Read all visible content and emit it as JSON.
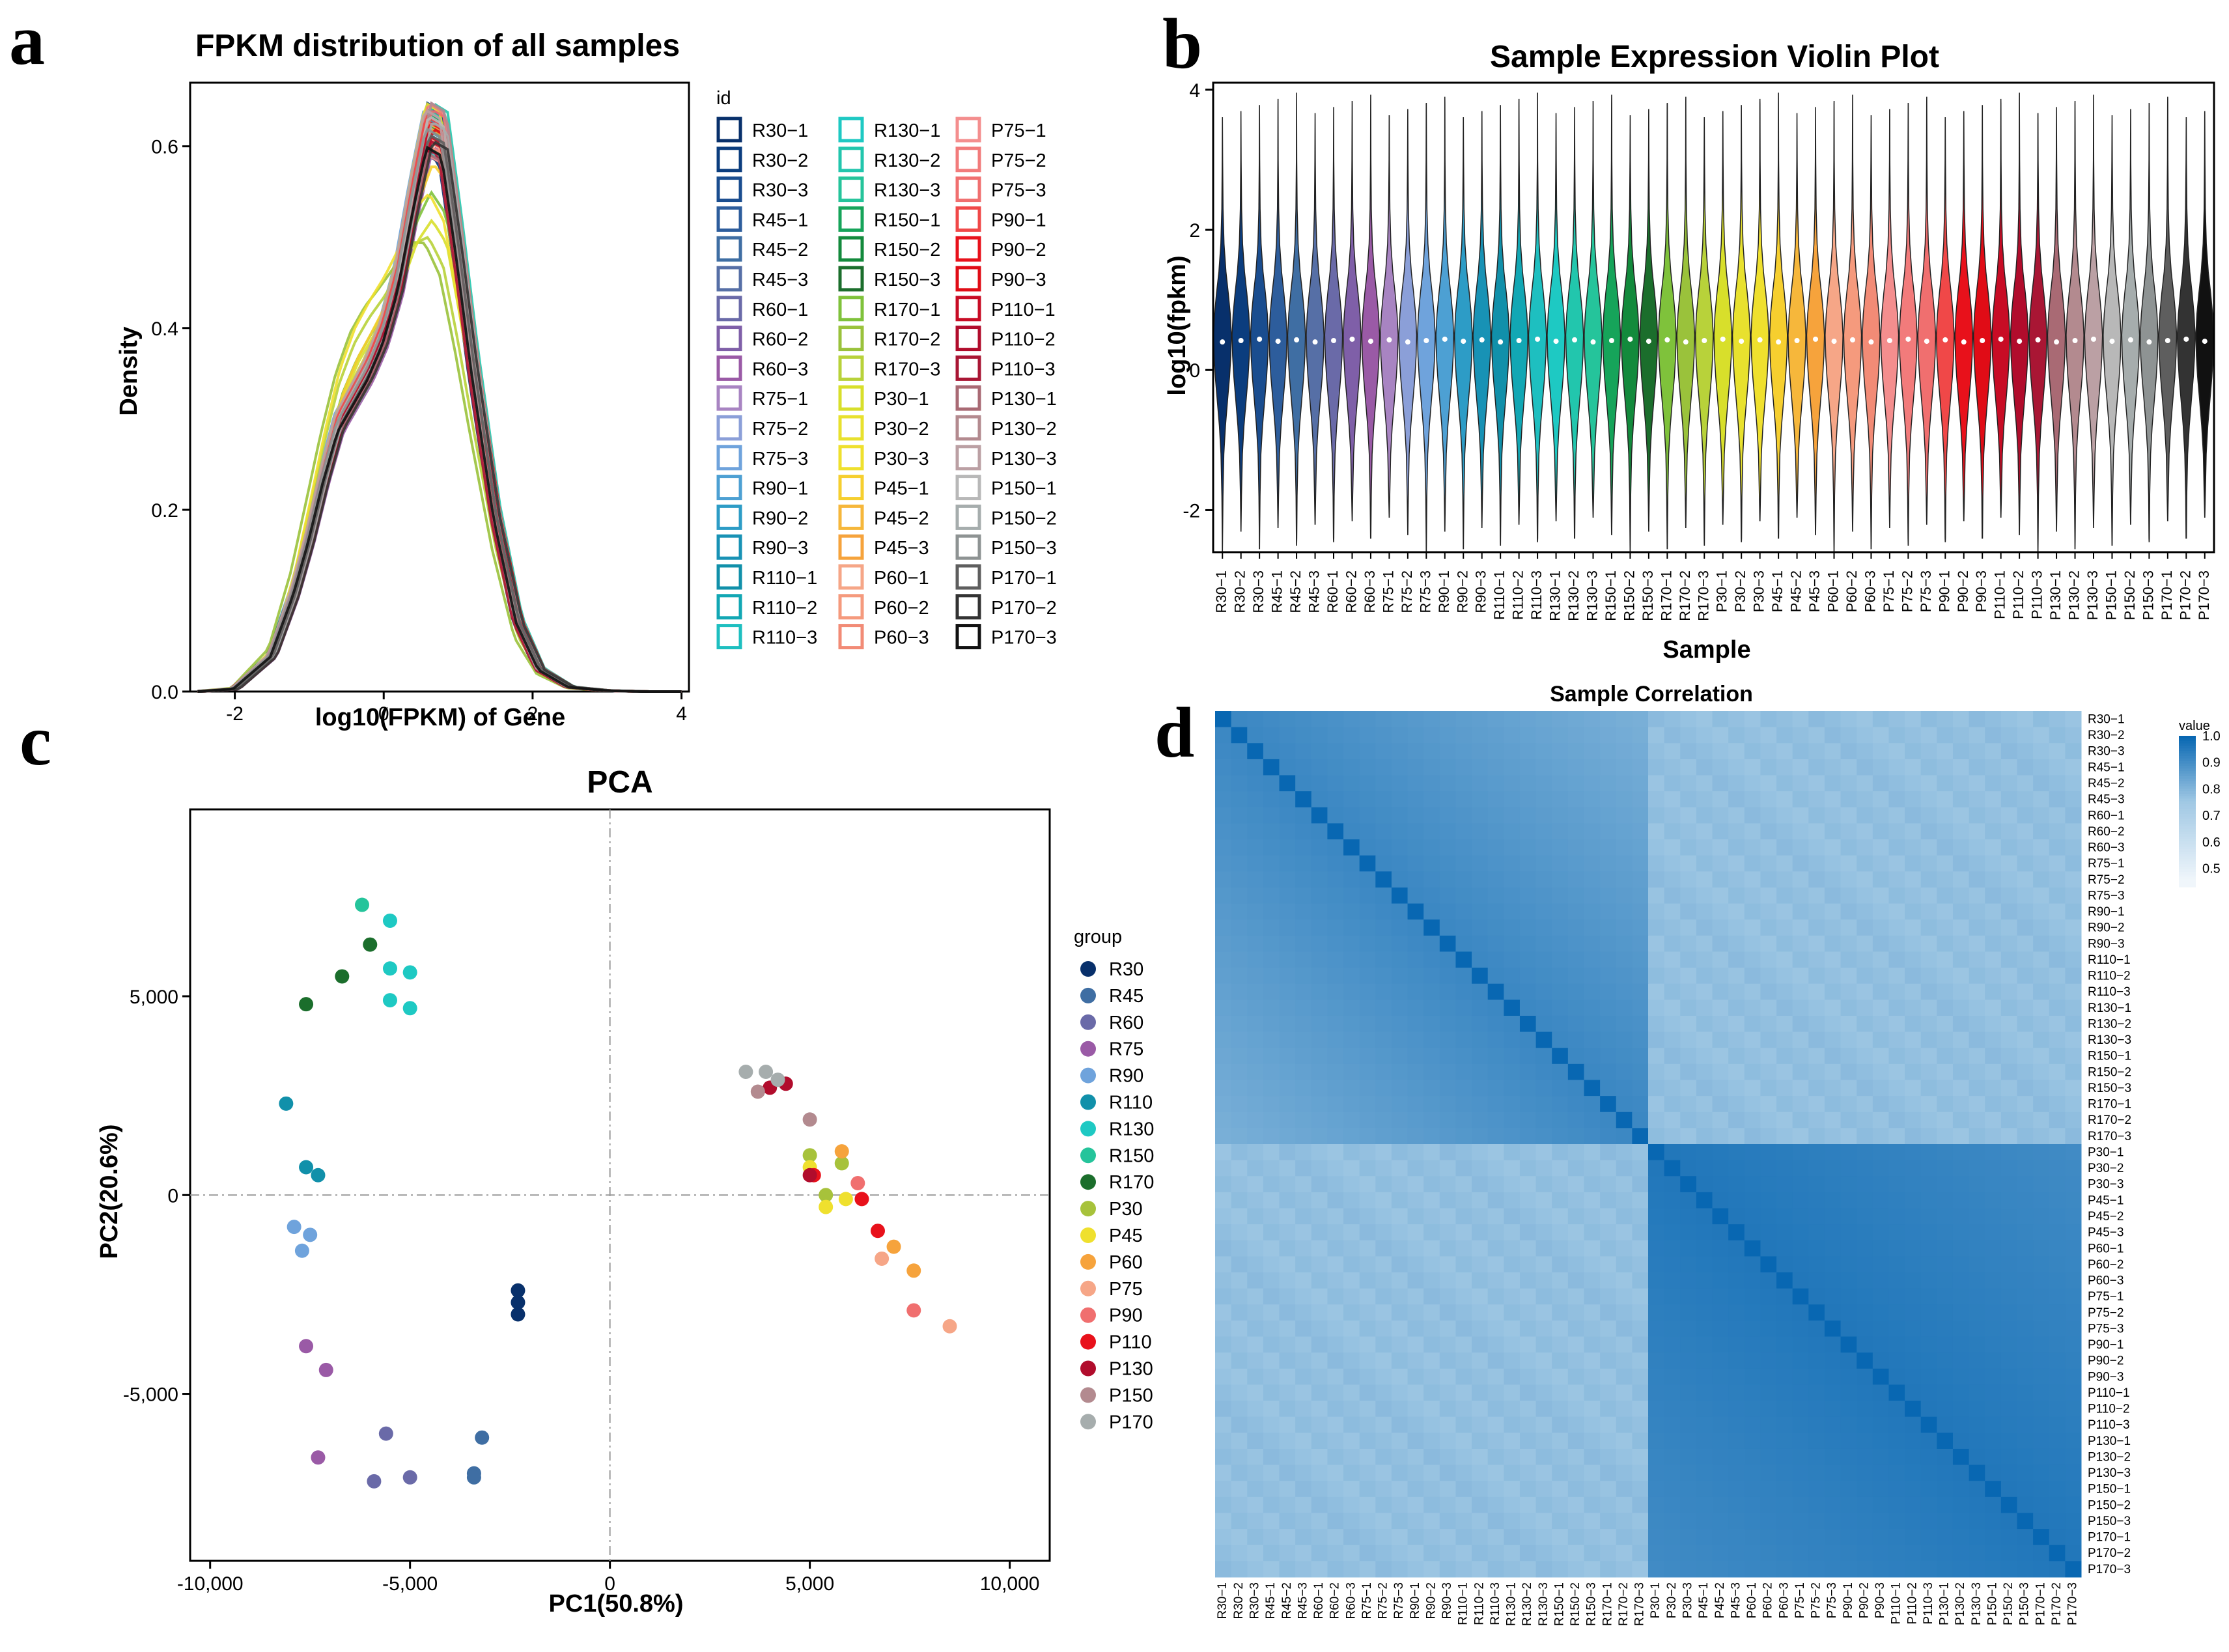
{
  "panel_labels": [
    "a",
    "b",
    "c",
    "d"
  ],
  "chart_data": [
    {
      "panel": "a",
      "type": "line",
      "title": "FPKM distribution of all samples",
      "xlabel": "log10(FPKM) of Gene",
      "ylabel": "Density",
      "xlim": [
        -2.6,
        4.1
      ],
      "ylim": [
        0,
        0.67
      ],
      "xticks": [
        "-2",
        "0",
        "2",
        "4"
      ],
      "yticks": [
        "0.0",
        "0.2",
        "0.4",
        "0.6"
      ],
      "legend_title": "id",
      "legend": [
        "R30−1",
        "R30−2",
        "R30−3",
        "R45−1",
        "R45−2",
        "R45−3",
        "R60−1",
        "R60−2",
        "R60−3",
        "R75−1",
        "R75−2",
        "R75−3",
        "R90−1",
        "R90−2",
        "R90−3",
        "R110−1",
        "R110−2",
        "R110−3",
        "R130−1",
        "R130−2",
        "R130−3",
        "R150−1",
        "R150−2",
        "R150−3",
        "R170−1",
        "R170−2",
        "R170−3",
        "P30−1",
        "P30−2",
        "P30−3",
        "P45−1",
        "P45−2",
        "P45−3",
        "P60−1",
        "P60−2",
        "P60−3",
        "P75−1",
        "P75−2",
        "P75−3",
        "P90−1",
        "P90−2",
        "P90−3",
        "P110−1",
        "P110−2",
        "P110−3",
        "P130−1",
        "P130−2",
        "P130−3",
        "P150−1",
        "P150−2",
        "P150−3",
        "P170−1",
        "P170−2",
        "P170−3"
      ],
      "curve_shape": {
        "x": [
          -2.5,
          -2.0,
          -1.5,
          -1.2,
          -1.0,
          -0.8,
          -0.6,
          -0.4,
          -0.2,
          0.0,
          0.2,
          0.4,
          0.6,
          0.8,
          1.0,
          1.2,
          1.5,
          1.8,
          2.1,
          2.5,
          3.0,
          3.5,
          4.0
        ],
        "y_main": [
          0.0,
          0.003,
          0.04,
          0.11,
          0.17,
          0.24,
          0.3,
          0.33,
          0.36,
          0.4,
          0.46,
          0.55,
          0.63,
          0.62,
          0.5,
          0.37,
          0.2,
          0.08,
          0.025,
          0.005,
          0.001,
          0.0,
          0.0
        ],
        "y_alt": [
          0.0,
          0.004,
          0.05,
          0.14,
          0.22,
          0.3,
          0.37,
          0.42,
          0.45,
          0.47,
          0.49,
          0.51,
          0.5,
          0.46,
          0.38,
          0.29,
          0.16,
          0.06,
          0.02,
          0.004,
          0.001,
          0.0,
          0.0
        ]
      }
    },
    {
      "panel": "b",
      "type": "violin",
      "title": "Sample Expression Violin Plot",
      "xlabel": "Sample",
      "ylabel": "log10(fpkm)",
      "ylim": [
        -2.6,
        4.1
      ],
      "yticks": [
        "-2",
        "0",
        "2",
        "4"
      ],
      "categories": [
        "R30−1",
        "R30−2",
        "R30−3",
        "R45−1",
        "R45−2",
        "R45−3",
        "R60−1",
        "R60−2",
        "R60−3",
        "R75−1",
        "R75−2",
        "R75−3",
        "R90−1",
        "R90−2",
        "R90−3",
        "R110−1",
        "R110−2",
        "R110−3",
        "R130−1",
        "R130−2",
        "R130−3",
        "R150−1",
        "R150−2",
        "R150−3",
        "R170−1",
        "R170−2",
        "R170−3",
        "P30−1",
        "P30−2",
        "P30−3",
        "P45−1",
        "P45−2",
        "P45−3",
        "P60−1",
        "P60−2",
        "P60−3",
        "P75−1",
        "P75−2",
        "P75−3",
        "P90−1",
        "P90−2",
        "P90−3",
        "P110−1",
        "P110−2",
        "P110−3",
        "P130−1",
        "P130−2",
        "P130−3",
        "P150−1",
        "P150−2",
        "P150−3",
        "P170−1",
        "P170−2",
        "P170−3"
      ],
      "median": 0.42,
      "max_range": [
        3.6,
        3.95
      ],
      "min_range": [
        -2.6,
        -2.1
      ]
    },
    {
      "panel": "c",
      "type": "scatter",
      "title": "PCA",
      "xlabel": "PC1(50.8%)",
      "ylabel": "PC2(20.6%)",
      "xlim": [
        -10500,
        11000
      ],
      "ylim": [
        -9200,
        9700
      ],
      "xticks": [
        "-10,000",
        "-5,000",
        "0",
        "5,000",
        "10,000"
      ],
      "yticks": [
        "5,000",
        "0",
        "-5,000"
      ],
      "legend_title": "group",
      "groups": [
        {
          "name": "R30",
          "color": "#08306b",
          "points": [
            [
              -2300,
              -2400
            ],
            [
              -2300,
              -2700
            ],
            [
              -2300,
              -3000
            ]
          ]
        },
        {
          "name": "R45",
          "color": "#3f6ea3",
          "points": [
            [
              -3200,
              -6100
            ],
            [
              -3400,
              -7000
            ],
            [
              -3400,
              -7100
            ]
          ]
        },
        {
          "name": "R60",
          "color": "#6a6aa8",
          "points": [
            [
              -5600,
              -6000
            ],
            [
              -5000,
              -7100
            ],
            [
              -5900,
              -7200
            ]
          ]
        },
        {
          "name": "R75",
          "color": "#9a5aa6",
          "points": [
            [
              -7600,
              -3800
            ],
            [
              -7100,
              -4400
            ],
            [
              -7300,
              -6600
            ]
          ]
        },
        {
          "name": "R90",
          "color": "#6fa3dc",
          "points": [
            [
              -7900,
              -800
            ],
            [
              -7500,
              -1000
            ],
            [
              -7700,
              -1400
            ]
          ]
        },
        {
          "name": "R110",
          "color": "#1190aa",
          "points": [
            [
              -8100,
              2300
            ],
            [
              -7600,
              700
            ],
            [
              -7300,
              500
            ]
          ]
        },
        {
          "name": "R130",
          "color": "#1ec9c3",
          "points": [
            [
              -5500,
              6900
            ],
            [
              -5500,
              5700
            ],
            [
              -5000,
              5600
            ],
            [
              -5500,
              4900
            ],
            [
              -5000,
              4700
            ]
          ]
        },
        {
          "name": "R150",
          "color": "#25c49b",
          "points": [
            [
              -6200,
              7300
            ]
          ]
        },
        {
          "name": "R170",
          "color": "#1b6e2c",
          "points": [
            [
              -6000,
              6300
            ],
            [
              -6700,
              5500
            ],
            [
              -7600,
              4800
            ]
          ]
        },
        {
          "name": "P30",
          "color": "#a7c23b",
          "points": [
            [
              5000,
              1000
            ],
            [
              5400,
              0
            ],
            [
              5800,
              800
            ]
          ]
        },
        {
          "name": "P45",
          "color": "#efe02e",
          "points": [
            [
              5400,
              -300
            ],
            [
              5000,
              700
            ],
            [
              5900,
              -100
            ]
          ]
        },
        {
          "name": "P60",
          "color": "#f6a33c",
          "points": [
            [
              5800,
              1100
            ],
            [
              7100,
              -1300
            ],
            [
              7600,
              -1900
            ]
          ]
        },
        {
          "name": "P75",
          "color": "#f6a687",
          "points": [
            [
              6800,
              -1600
            ],
            [
              8500,
              -3300
            ]
          ]
        },
        {
          "name": "P90",
          "color": "#f06f6f",
          "points": [
            [
              6200,
              300
            ],
            [
              7600,
              -2900
            ]
          ]
        },
        {
          "name": "P110",
          "color": "#e8111b",
          "points": [
            [
              6300,
              -100
            ],
            [
              6700,
              -900
            ],
            [
              5100,
              500
            ]
          ]
        },
        {
          "name": "P130",
          "color": "#b10c2c",
          "points": [
            [
              4400,
              2800
            ],
            [
              5000,
              500
            ],
            [
              4000,
              2700
            ]
          ]
        },
        {
          "name": "P150",
          "color": "#b38a8f",
          "points": [
            [
              3700,
              2600
            ],
            [
              5000,
              1900
            ]
          ]
        },
        {
          "name": "P170",
          "color": "#a6adad",
          "points": [
            [
              3400,
              3100
            ],
            [
              3900,
              3100
            ],
            [
              4200,
              2900
            ]
          ]
        }
      ]
    },
    {
      "panel": "d",
      "type": "heatmap",
      "title": "Sample Correlation",
      "legend_title": "value",
      "legend_ticks": [
        "1.0",
        "0.9",
        "0.8",
        "0.7",
        "0.6",
        "0.5"
      ],
      "labels": [
        "R30−1",
        "R30−2",
        "R30−3",
        "R45−1",
        "R45−2",
        "R45−3",
        "R60−1",
        "R60−2",
        "R60−3",
        "R75−1",
        "R75−2",
        "R75−3",
        "R90−1",
        "R90−2",
        "R90−3",
        "R110−1",
        "R110−2",
        "R110−3",
        "R130−1",
        "R130−2",
        "R130−3",
        "R150−1",
        "R150−2",
        "R150−3",
        "R170−1",
        "R170−2",
        "R170−3",
        "P30−1",
        "P30−2",
        "P30−3",
        "P45−1",
        "P45−2",
        "P45−3",
        "P60−1",
        "P60−2",
        "P60−3",
        "P75−1",
        "P75−2",
        "P75−3",
        "P90−1",
        "P90−2",
        "P90−3",
        "P110−1",
        "P110−2",
        "P110−3",
        "P130−1",
        "P130−2",
        "P130−3",
        "P150−1",
        "P150−2",
        "P150−3",
        "P170−1",
        "P170−2",
        "P170−3"
      ],
      "block_structure": {
        "within_R": 0.92,
        "within_P": 0.96,
        "between": 0.76
      }
    }
  ],
  "colors": {
    "sample_palette": [
      "#08306b",
      "#0b3d7e",
      "#1a4d8f",
      "#2d5d9c",
      "#3f6ea3",
      "#566fa6",
      "#6a6aa8",
      "#7f5fa8",
      "#9a5aa6",
      "#a884c2",
      "#8b9fd8",
      "#6fa3dc",
      "#4da0d3",
      "#2d9cc6",
      "#1892b5",
      "#1190aa",
      "#12a7b4",
      "#1ebfc0",
      "#1ec9c3",
      "#22c6ad",
      "#25c49b",
      "#16a45a",
      "#138a3c",
      "#1b6e2c",
      "#7fc23b",
      "#9ac23b",
      "#b8d23a",
      "#d8df2b",
      "#e8e12e",
      "#efe02e",
      "#f6cf2f",
      "#f6b73b",
      "#f6a33c",
      "#f6a687",
      "#f59a7d",
      "#f28b76",
      "#f48e8e",
      "#f27b7b",
      "#f06f6f",
      "#f04848",
      "#e8111b",
      "#e00c16",
      "#c80c25",
      "#b10c2c",
      "#a91634",
      "#a96a74",
      "#b38a8f",
      "#bba0a4",
      "#b8b8b8",
      "#a6adad",
      "#8e9393",
      "#5e5e5e",
      "#333333",
      "#111111"
    ]
  }
}
